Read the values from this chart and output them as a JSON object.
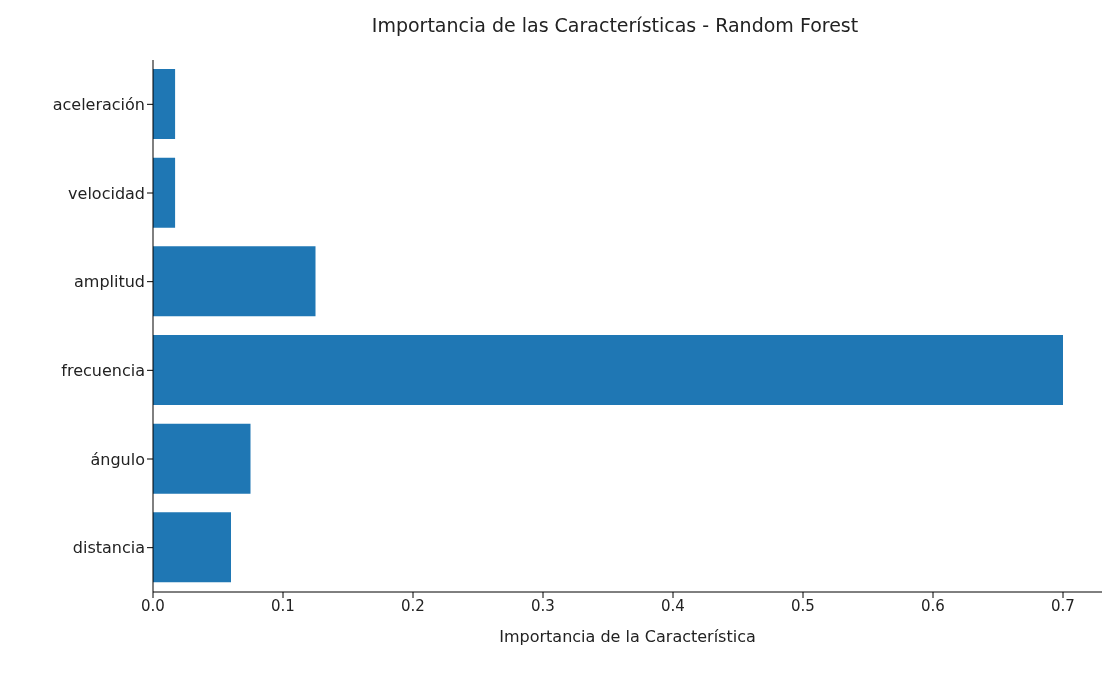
{
  "chart_data": {
    "type": "bar",
    "orientation": "horizontal",
    "title": "Importancia de las Características - Random Forest",
    "xlabel": "Importancia de la Característica",
    "categories": [
      "aceleración",
      "velocidad",
      "amplitud",
      "frecuencia",
      "ángulo",
      "distancia"
    ],
    "values": [
      0.017,
      0.017,
      0.125,
      0.7,
      0.075,
      0.06
    ],
    "color": "#1f77b4",
    "xlim": [
      0,
      0.73
    ],
    "xticks": [
      {
        "value": 0,
        "label": "0.0"
      },
      0.1,
      0.2,
      0.3,
      0.4,
      0.5,
      0.6,
      0.7
    ],
    "grid": false
  }
}
